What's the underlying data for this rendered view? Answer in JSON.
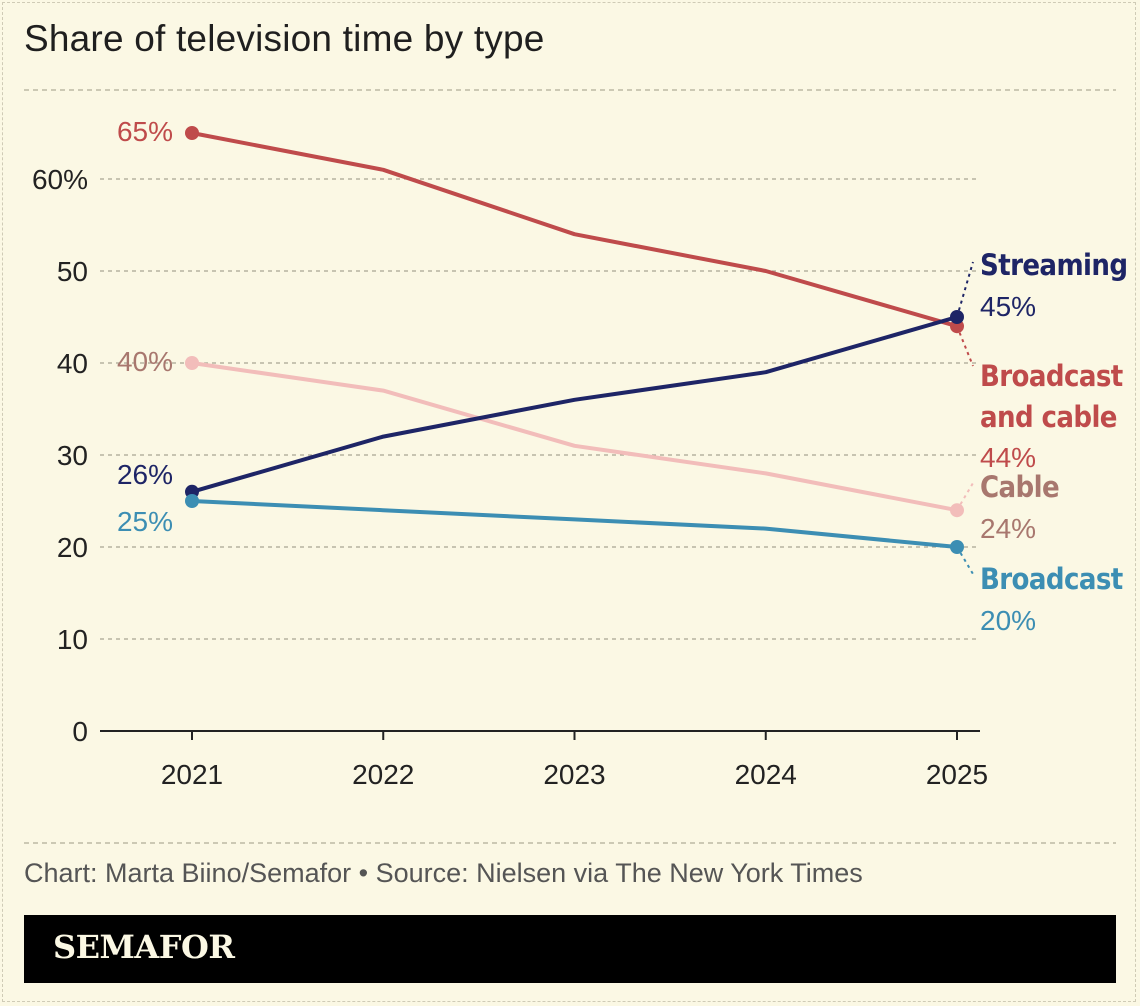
{
  "header": {
    "title": "Share of television time by type"
  },
  "chart_data": {
    "type": "line",
    "title": "Share of television time by type",
    "x": [
      "2021",
      "2022",
      "2023",
      "2024",
      "2025"
    ],
    "ylim": [
      0,
      70
    ],
    "yticks": [
      0,
      10,
      20,
      30,
      40,
      50,
      60
    ],
    "ytick_labels": [
      "0",
      "10",
      "20",
      "30",
      "40",
      "50",
      "60%"
    ],
    "grid": true,
    "series": [
      {
        "key": "broadcast_and_cable",
        "name": "Broadcast and cable",
        "name_lines": [
          "Broadcast",
          "and cable"
        ],
        "color": "#BF4B4B",
        "values": [
          65,
          61,
          54,
          50,
          44
        ],
        "start_label": "65%",
        "end_label": "44%"
      },
      {
        "key": "cable",
        "name": "Cable",
        "name_lines": [
          "Cable"
        ],
        "color": "#F2BDBA",
        "label_color": "#A8776E",
        "values": [
          40,
          37,
          31,
          28,
          24
        ],
        "start_label": "40%",
        "end_label": "24%"
      },
      {
        "key": "streaming",
        "name": "Streaming",
        "name_lines": [
          "Streaming"
        ],
        "color": "#1E2566",
        "values": [
          26,
          32,
          36,
          39,
          45
        ],
        "start_label": "26%",
        "end_label": "45%"
      },
      {
        "key": "broadcast",
        "name": "Broadcast",
        "name_lines": [
          "Broadcast"
        ],
        "color": "#3C8EB3",
        "values": [
          25,
          24,
          23,
          22,
          20
        ],
        "start_label": "25%",
        "end_label": "20%"
      }
    ]
  },
  "footer": {
    "credit": "Chart: Marta Biino/Semafor • Source: Nielsen via The New York Times",
    "brand": "SEMAFOR"
  }
}
